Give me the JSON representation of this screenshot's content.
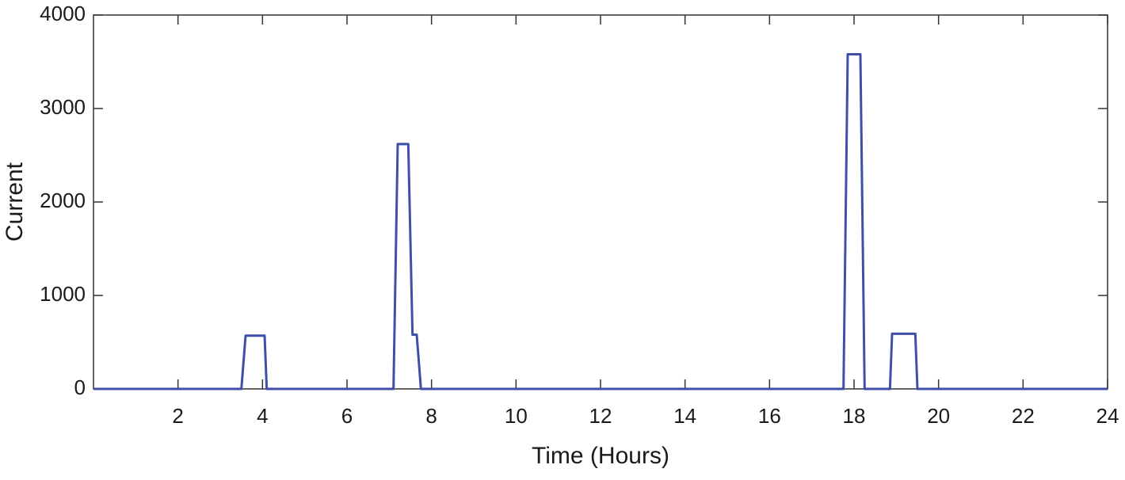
{
  "chart_data": {
    "type": "line",
    "xlabel": "Time (Hours)",
    "ylabel": "Current",
    "x": [
      0,
      3.5,
      3.6,
      4.05,
      4.1,
      7.1,
      7.2,
      7.45,
      7.55,
      7.65,
      7.75,
      17.75,
      17.85,
      18.15,
      18.25,
      18.85,
      18.9,
      19.45,
      19.5,
      24
    ],
    "series": [
      {
        "color": "#3f4fa8",
        "values": [
          0,
          0,
          570,
          570,
          0,
          0,
          2620,
          2620,
          580,
          580,
          0,
          0,
          3580,
          3580,
          0,
          0,
          590,
          590,
          0,
          0
        ]
      }
    ],
    "xlim": [
      0,
      24
    ],
    "xticks": [
      2,
      4,
      6,
      8,
      10,
      12,
      14,
      16,
      18,
      20,
      22,
      24
    ],
    "ylim": [
      0,
      4000
    ],
    "yticks": [
      0,
      1000,
      2000,
      3000,
      4000
    ],
    "grid": false
  }
}
